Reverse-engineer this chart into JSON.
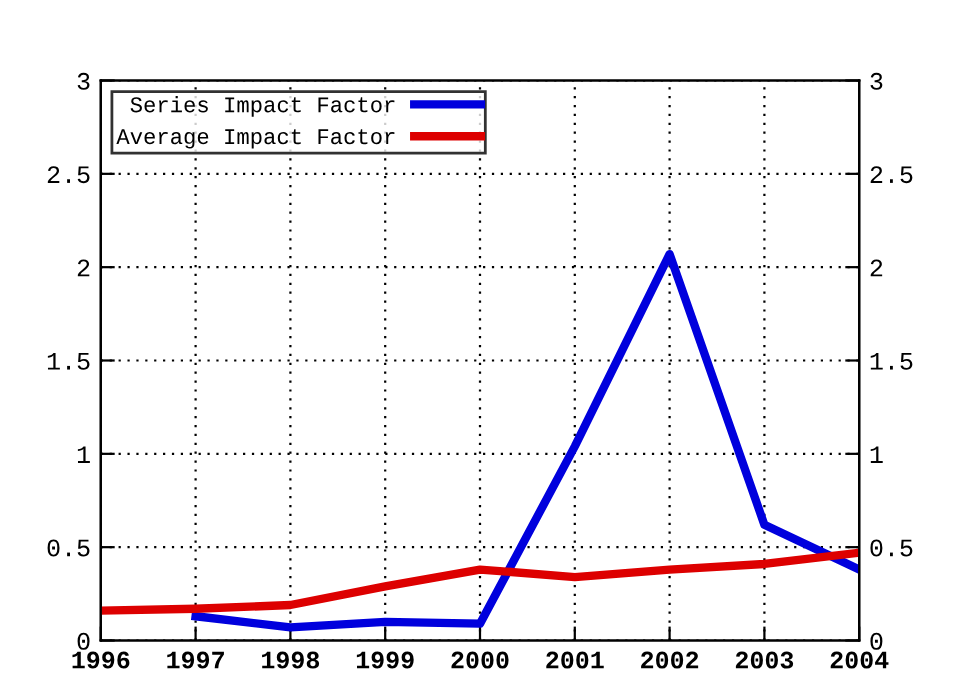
{
  "chart_data": {
    "type": "line",
    "x": [
      1996,
      1997,
      1998,
      1999,
      2000,
      2001,
      2002,
      2003,
      2004
    ],
    "series": [
      {
        "name": "Series Impact Factor",
        "color": "#0000dd",
        "values": [
          null,
          0.13,
          0.07,
          0.1,
          0.09,
          1.04,
          2.07,
          0.62,
          0.38
        ]
      },
      {
        "name": "Average Impact Factor",
        "color": "#dd0000",
        "values": [
          0.16,
          0.17,
          0.19,
          0.29,
          0.38,
          0.34,
          0.38,
          0.41,
          0.47
        ]
      }
    ],
    "xlim": [
      1996,
      2004
    ],
    "xticks": [
      1996,
      1997,
      1998,
      1999,
      2000,
      2001,
      2002,
      2003,
      2004
    ],
    "ylim": [
      0,
      3
    ],
    "yticks": [
      0,
      0.5,
      1,
      1.5,
      2,
      2.5,
      3
    ],
    "y2lim": [
      0,
      3
    ],
    "y2ticks": [
      0,
      0.5,
      1,
      1.5,
      2,
      2.5,
      3
    ],
    "grid": true,
    "legend": "top left",
    "marker": "none",
    "line_style": "solid"
  }
}
